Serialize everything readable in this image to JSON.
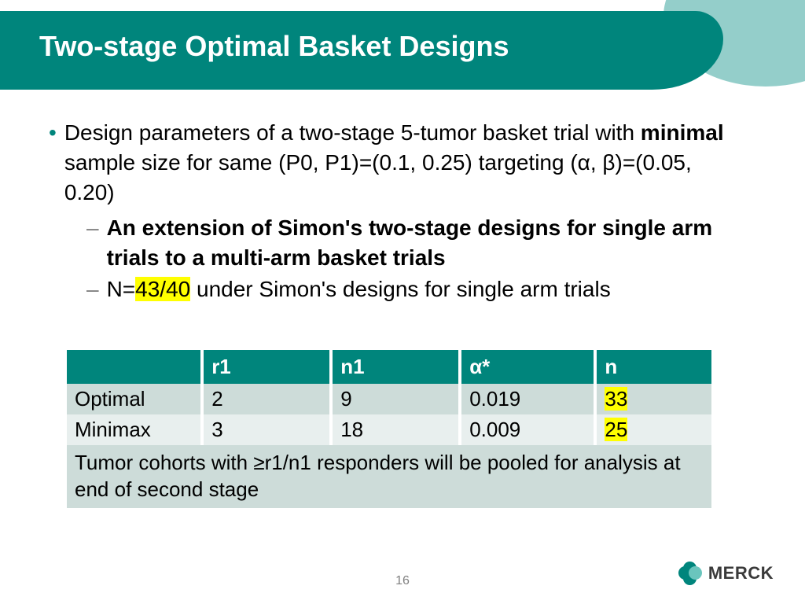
{
  "header": {
    "title": "Two-stage Optimal Basket Designs",
    "band_color": "#00857c",
    "accent_color": "#3da59e",
    "text_color": "#ffffff",
    "title_fontsize": 36
  },
  "body": {
    "bullet_color": "#00857c",
    "dash_color": "#808080",
    "text_color": "#000000",
    "fontsize": 28,
    "main_bullet": {
      "pre": "Design parameters of a two-stage 5-tumor basket trial with ",
      "bold1": "minimal",
      "post": " sample size for same (P0, P1)=(0.1, 0.25) targeting (α, β)=(0.05, 0.20)"
    },
    "sub1": "An extension of Simon's two-stage designs for single arm trials to a multi-arm basket trials",
    "sub2_pre": "N=",
    "sub2_hl": "43/40",
    "sub2_post": " under Simon's designs for single arm trials",
    "highlight_color": "#ffff00"
  },
  "table": {
    "header_bg": "#00857c",
    "header_fg": "#ffffff",
    "row_odd_bg": "#cddcd9",
    "row_even_bg": "#e8efee",
    "border_color": "#ffffff",
    "fontsize": 26,
    "columns": [
      "",
      "r1",
      "n1",
      "α*",
      "n"
    ],
    "col_widths_pct": [
      21,
      20,
      20,
      21,
      18
    ],
    "rows": [
      {
        "label": "Optimal",
        "r1": "2",
        "n1": "9",
        "alpha": "0.019",
        "n": "33",
        "n_highlight": true
      },
      {
        "label": "Minimax",
        "r1": "3",
        "n1": "18",
        "alpha": "0.009",
        "n": "25",
        "n_highlight": true
      }
    ],
    "footer": "Tumor cohorts with ≥r1/n1 responders will be pooled for analysis at end of second stage"
  },
  "footer": {
    "page_number": "16",
    "page_color": "#808080",
    "brand": "MERCK",
    "brand_color": "#3a3a3a",
    "logo_color": "#00857c"
  }
}
